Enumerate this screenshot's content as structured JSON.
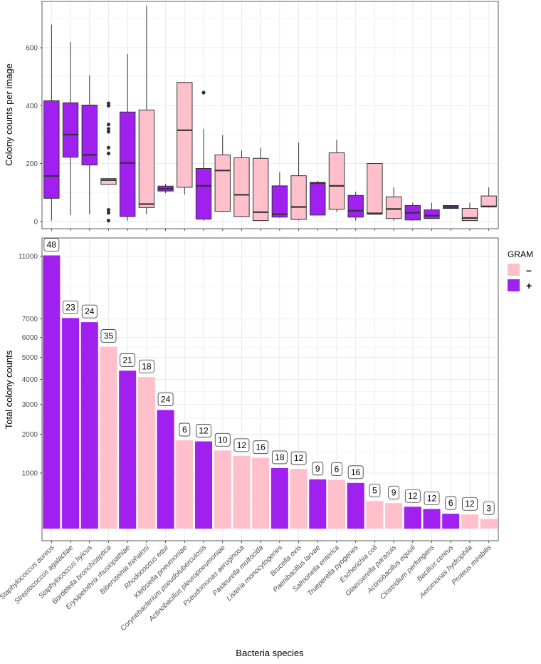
{
  "colors": {
    "negative": "#FFC0CB",
    "positive": "#A020F0",
    "grid": "#EBEBEB",
    "border": "#333333"
  },
  "legend": {
    "title": "GRAM",
    "items": [
      {
        "key": "negative",
        "label": "–"
      },
      {
        "key": "positive",
        "label": "+"
      }
    ]
  },
  "shared_xlabel": "Bacteria species",
  "chart_data": [
    {
      "type": "box",
      "title": "",
      "xlabel": "",
      "ylabel": "Colony counts per image",
      "ylim": [
        -25,
        760
      ],
      "yticks": [
        0,
        200,
        400,
        600
      ],
      "grid": true,
      "categories": [
        "Staphylococcus aureus",
        "Streptococcus agalactiae",
        "Staphylococcus hyicus",
        "Bordetella bronchiseptica",
        "Erysipelothrix rhusiopathiae",
        "Bibersteinia trehalosi",
        "Rhodococcus equi",
        "Klebsiella pneumoniae",
        "Corynebacterium pseudotuberculosis",
        "Actinobacillus pleuropneumoniae",
        "Pseudomonas aeruginosa",
        "Pasteurella multocida",
        "Listeria monocytogenes",
        "Brucella ovis",
        "Paenibacillus larvae",
        "Salmonella enterica",
        "Trueperella pyogenes",
        "Escherichia coli",
        "Glaesserella parasuis",
        "Actinobacillus equuli",
        "Clostridium perfringens",
        "Bacillus cereus",
        "Aeromonas hydrophila",
        "Proteus mirabilis"
      ],
      "gram": [
        "+",
        "+",
        "+",
        "-",
        "+",
        "-",
        "+",
        "-",
        "+",
        "-",
        "-",
        "-",
        "+",
        "-",
        "+",
        "-",
        "+",
        "-",
        "-",
        "+",
        "+",
        "+",
        "-",
        "-"
      ],
      "boxes": [
        {
          "lower": 3,
          "q1": 80,
          "median": 157,
          "q3": 417,
          "upper": 680,
          "outliers": []
        },
        {
          "lower": 22,
          "q1": 222,
          "median": 300,
          "q3": 410,
          "upper": 620,
          "outliers": []
        },
        {
          "lower": 25,
          "q1": 195,
          "median": 230,
          "q3": 402,
          "upper": 505,
          "outliers": []
        },
        {
          "lower": 128,
          "q1": 128,
          "median": 143,
          "q3": 148,
          "upper": 148,
          "outliers": [
            3,
            30,
            40,
            235,
            255,
            310,
            320,
            335,
            400,
            408
          ]
        },
        {
          "lower": 3,
          "q1": 17,
          "median": 202,
          "q3": 378,
          "upper": 578,
          "outliers": []
        },
        {
          "lower": 25,
          "q1": 48,
          "median": 60,
          "q3": 385,
          "upper": 745,
          "outliers": []
        },
        {
          "lower": 98,
          "q1": 105,
          "median": 113,
          "q3": 122,
          "upper": 130,
          "outliers": []
        },
        {
          "lower": 93,
          "q1": 118,
          "median": 315,
          "q3": 480,
          "upper": 482,
          "outliers": []
        },
        {
          "lower": 3,
          "q1": 8,
          "median": 123,
          "q3": 183,
          "upper": 320,
          "outliers": [
            445
          ]
        },
        {
          "lower": 33,
          "q1": 35,
          "median": 176,
          "q3": 230,
          "upper": 298,
          "outliers": []
        },
        {
          "lower": 15,
          "q1": 17,
          "median": 92,
          "q3": 220,
          "upper": 245,
          "outliers": []
        },
        {
          "lower": 3,
          "q1": 3,
          "median": 32,
          "q3": 218,
          "upper": 255,
          "outliers": []
        },
        {
          "lower": 13,
          "q1": 15,
          "median": 25,
          "q3": 123,
          "upper": 170,
          "outliers": []
        },
        {
          "lower": 3,
          "q1": 7,
          "median": 50,
          "q3": 158,
          "upper": 272,
          "outliers": []
        },
        {
          "lower": 22,
          "q1": 22,
          "median": 132,
          "q3": 135,
          "upper": 140,
          "outliers": []
        },
        {
          "lower": 33,
          "q1": 42,
          "median": 123,
          "q3": 237,
          "upper": 282,
          "outliers": []
        },
        {
          "lower": 3,
          "q1": 15,
          "median": 37,
          "q3": 90,
          "upper": 103,
          "outliers": []
        },
        {
          "lower": 25,
          "q1": 25,
          "median": 28,
          "q3": 200,
          "upper": 200,
          "outliers": []
        },
        {
          "lower": 3,
          "q1": 10,
          "median": 43,
          "q3": 85,
          "upper": 118,
          "outliers": []
        },
        {
          "lower": 3,
          "q1": 5,
          "median": 30,
          "q3": 55,
          "upper": 65,
          "outliers": []
        },
        {
          "lower": 10,
          "q1": 10,
          "median": 20,
          "q3": 40,
          "upper": 65,
          "outliers": []
        },
        {
          "lower": 45,
          "q1": 45,
          "median": 50,
          "q3": 55,
          "upper": 55,
          "outliers": []
        },
        {
          "lower": 3,
          "q1": 3,
          "median": 12,
          "q3": 45,
          "upper": 65,
          "outliers": []
        },
        {
          "lower": 48,
          "q1": 50,
          "median": 52,
          "q3": 88,
          "upper": 118,
          "outliers": []
        }
      ]
    },
    {
      "type": "bar",
      "title": "",
      "xlabel": "Bacteria species",
      "ylabel": "Total colony counts",
      "y_scale": "square-root",
      "yticks": [
        1000,
        2000,
        3000,
        4000,
        5000,
        6000,
        7000,
        11000
      ],
      "grid": true,
      "categories": [
        "Staphylococcus aureus",
        "Streptococcus agalactiae",
        "Staphylococcus hyicus",
        "Bordetella bronchiseptica",
        "Erysipelothrix rhusiopathiae",
        "Bibersteinia trehalosi",
        "Rhodococcus equi",
        "Klebsiella pneumoniae",
        "Corynebacterium pseudotuberculosis",
        "Actinobacillus pleuropneumoniae",
        "Pseudomonas aeruginosa",
        "Pasteurella multocida",
        "Listeria monocytogenes",
        "Brucella ovis",
        "Paenibacillus larvae",
        "Salmonella enterica",
        "Trueperella pyogenes",
        "Escherichia coli",
        "Glaesserella parasuis",
        "Actinobacillus equuli",
        "Clostridium perfringens",
        "Bacillus cereus",
        "Aeromonas hydrophila",
        "Proteus mirabilis"
      ],
      "gram": [
        "+",
        "+",
        "+",
        "-",
        "+",
        "-",
        "+",
        "-",
        "+",
        "-",
        "-",
        "-",
        "+",
        "-",
        "+",
        "-",
        "+",
        "-",
        "-",
        "+",
        "+",
        "+",
        "-",
        "-"
      ],
      "values": [
        11050,
        7050,
        6820,
        5520,
        4380,
        4100,
        2800,
        1820,
        1790,
        1540,
        1400,
        1350,
        1110,
        1090,
        870,
        860,
        800,
        490,
        460,
        410,
        380,
        320,
        310,
        260
      ],
      "labels": [
        "48",
        "23",
        "24",
        "35",
        "21",
        "18",
        "24",
        "6",
        "12",
        "10",
        "12",
        "16",
        "18",
        "12",
        "9",
        "6",
        "16",
        "5",
        "9",
        "12",
        "12",
        "6",
        "12",
        "3"
      ]
    }
  ]
}
